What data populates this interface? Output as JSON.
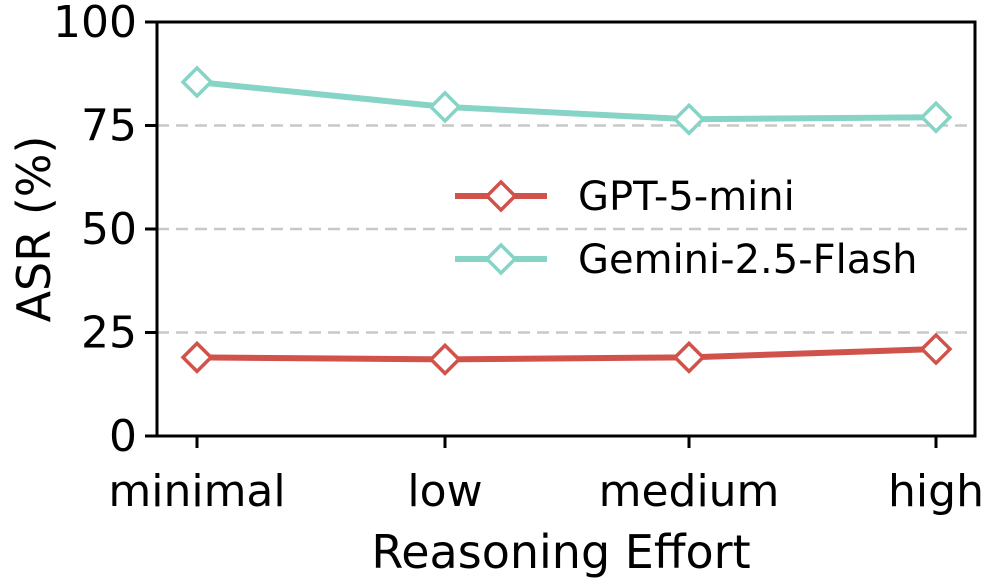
{
  "chart_data": {
    "type": "line",
    "categories": [
      "minimal",
      "low",
      "medium",
      "high"
    ],
    "xlabel": "Reasoning Effort",
    "ylabel": "ASR (%)",
    "ylim": [
      0,
      100
    ],
    "yticks": [
      0,
      25,
      50,
      75,
      100
    ],
    "grid": "horizontal dashed",
    "legend_position": "center-right",
    "marker": "diamond",
    "series": [
      {
        "name": "GPT-5-mini",
        "color": "#d0524a",
        "values": [
          19,
          18.5,
          19,
          21
        ]
      },
      {
        "name": "Gemini-2.5-Flash",
        "color": "#85d4c5",
        "values": [
          85.5,
          79.5,
          76.5,
          77
        ]
      }
    ]
  }
}
